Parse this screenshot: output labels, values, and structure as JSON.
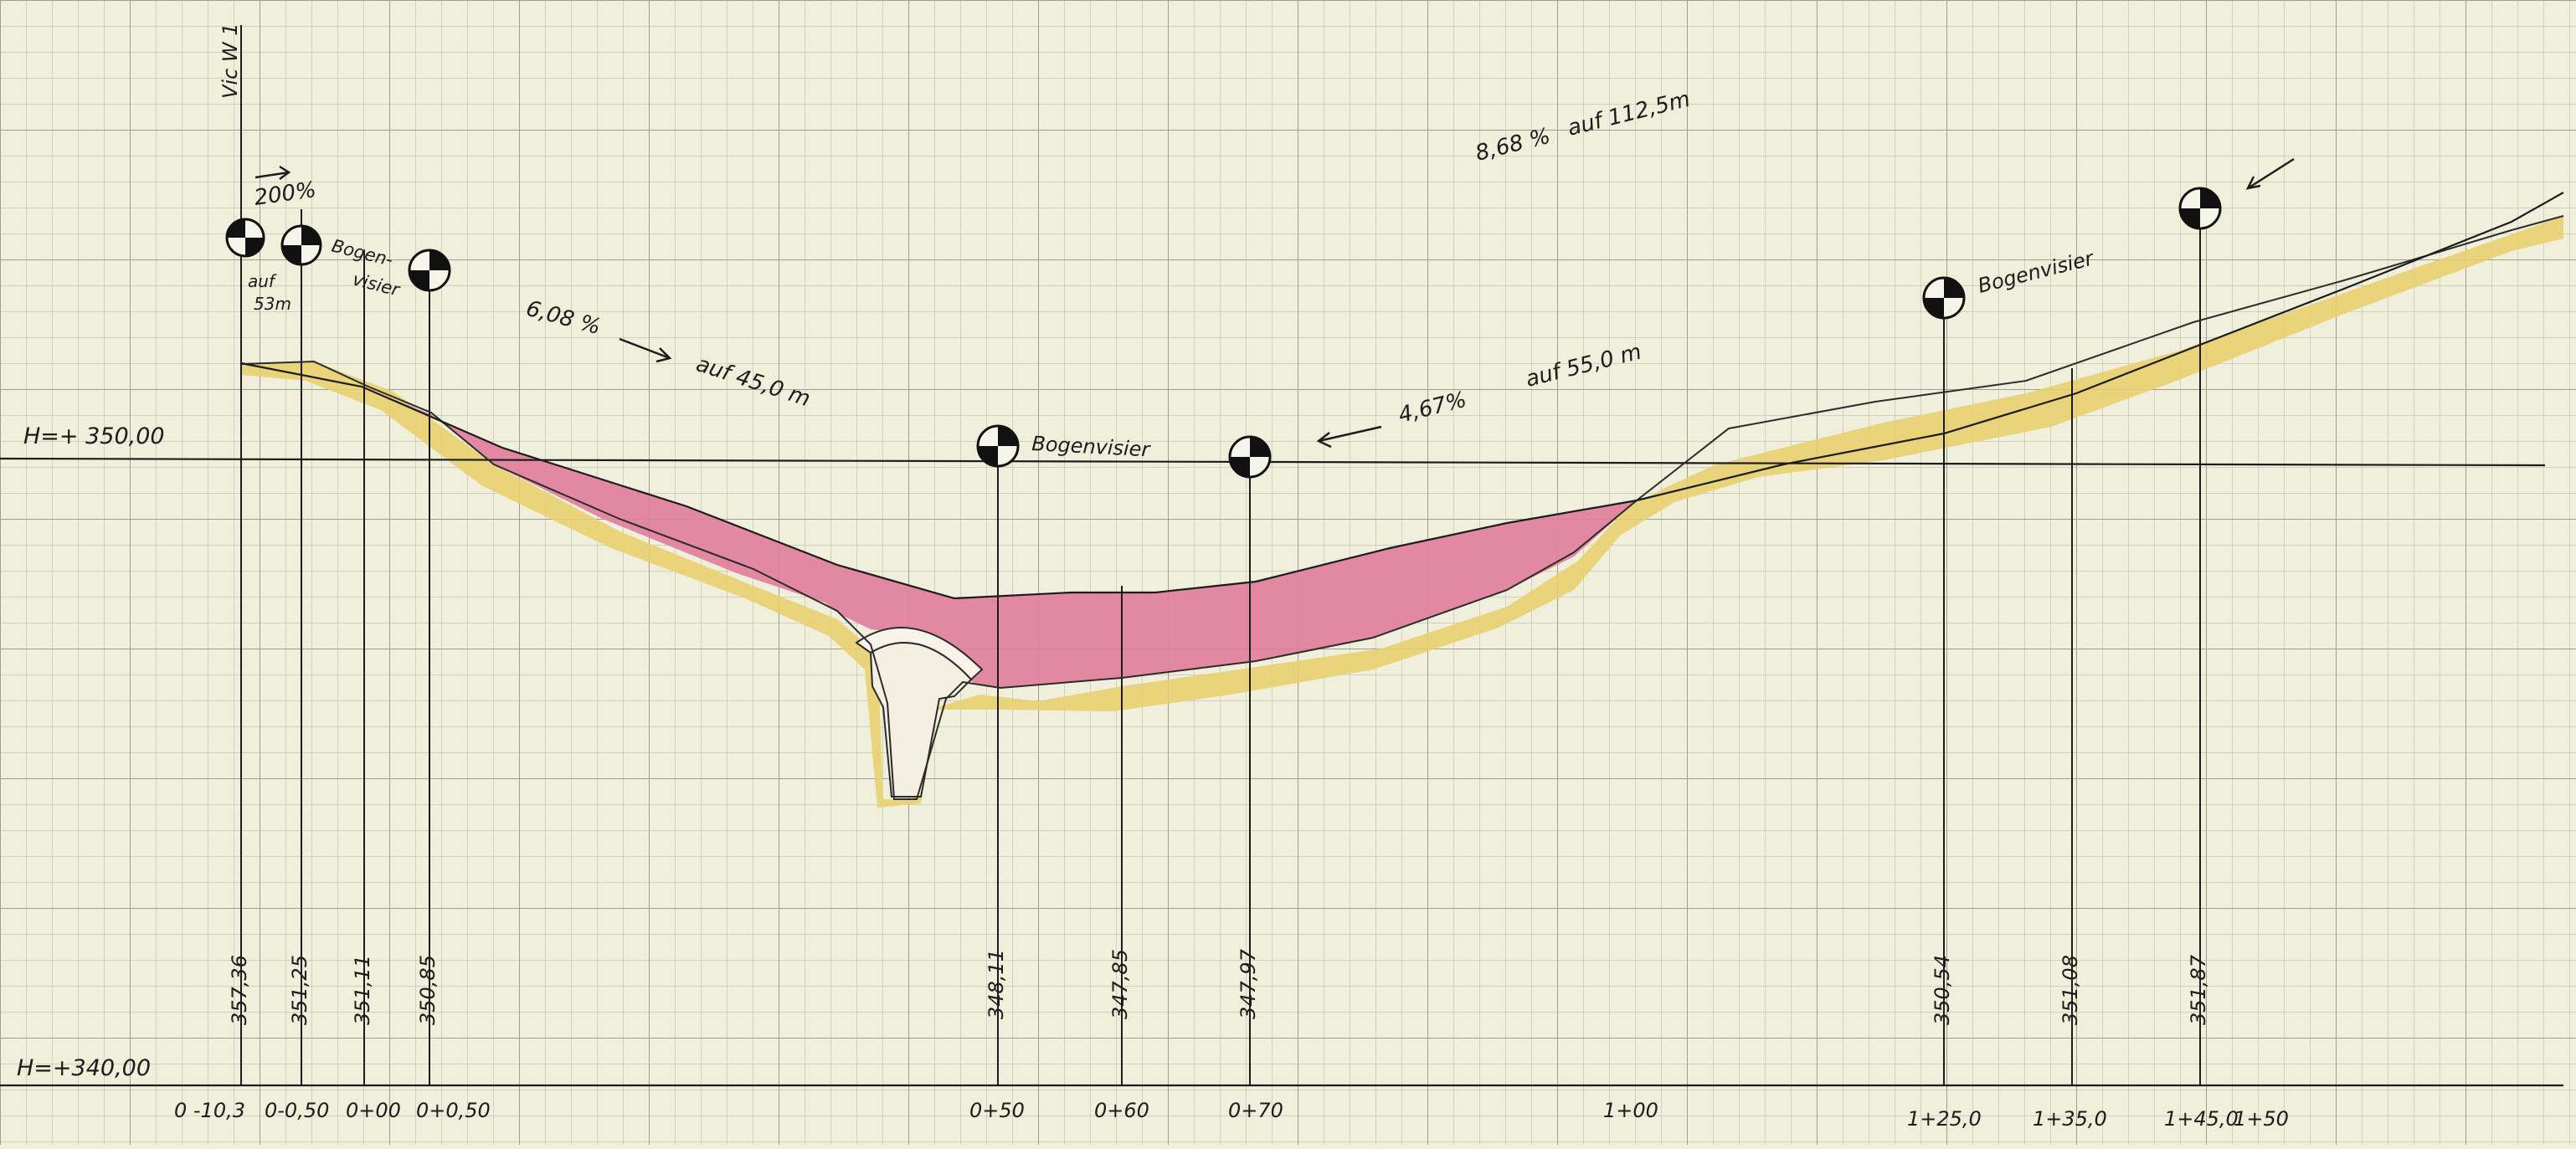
{
  "reference_levels": [
    {
      "label": "H=+ 350,00"
    },
    {
      "label": "H=+340,00"
    }
  ],
  "top_label": "Vic W 1",
  "grade_annotations": [
    {
      "text": "200%"
    },
    {
      "text": "auf"
    },
    {
      "text": "53m"
    },
    {
      "text": "6,08 %"
    },
    {
      "text": "auf  45,0 m"
    },
    {
      "text": "4,67%"
    },
    {
      "text": "auf  55,0 m"
    },
    {
      "text": "8,68 %"
    },
    {
      "text": "auf  112,5m"
    }
  ],
  "sight_markers": [
    {
      "label": "Bogen-"
    },
    {
      "label": "visier"
    },
    {
      "label": "Bogenvisier"
    },
    {
      "label": "Bogenvisier"
    }
  ],
  "elevations": [
    "357,36",
    "351,25",
    "351,11",
    "350,85",
    "348,11",
    "347,85",
    "347,97",
    "350,54",
    "351,08",
    "351,87"
  ],
  "stations": [
    "0 -10,3",
    "0-0,50",
    "0+00",
    "0+0,50",
    "0+50",
    "0+60",
    "0+70",
    "1+00",
    "1+25,0",
    "1+35,0",
    "1+45,0",
    "1+50"
  ],
  "colors": {
    "paper": "#efefdc",
    "grid_minor": "#bdbdae",
    "grid_major": "#9d9d90",
    "cut_fill": "#e27f9c",
    "subsoil_fill": "#e8cf6d",
    "ink": "#1c1c1c"
  }
}
